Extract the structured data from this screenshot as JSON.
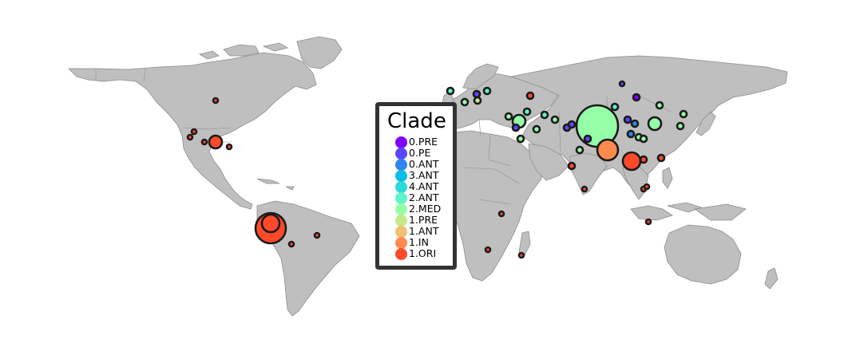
{
  "legend": {
    "title": "Clade",
    "items": [
      {
        "label": "0.PRE",
        "color": "#7f00ff"
      },
      {
        "label": "0.PE",
        "color": "#5a46ff"
      },
      {
        "label": "0.ANT",
        "color": "#2e86ee"
      },
      {
        "label": "3.ANT",
        "color": "#0bbde6"
      },
      {
        "label": "4.ANT",
        "color": "#2cdad8"
      },
      {
        "label": "2.ANT",
        "color": "#5ef5c7"
      },
      {
        "label": "2.MED",
        "color": "#94ffa6"
      },
      {
        "label": "1.PRE",
        "color": "#c3e98a"
      },
      {
        "label": "1.ANT",
        "color": "#f0c070"
      },
      {
        "label": "1.IN",
        "color": "#ff8a4c"
      },
      {
        "label": "1.ORI",
        "color": "#ff4a2a"
      }
    ]
  },
  "points": [
    {
      "region": "Canada",
      "clade": "1.ORI",
      "size": "small"
    },
    {
      "region": "California",
      "clade": "1.ORI",
      "size": "small"
    },
    {
      "region": "California",
      "clade": "1.ORI",
      "size": "small"
    },
    {
      "region": "Arizona",
      "clade": "1.ORI",
      "size": "small"
    },
    {
      "region": "New Mexico",
      "clade": "1.ORI",
      "size": "medium"
    },
    {
      "region": "Texas",
      "clade": "1.ORI",
      "size": "small"
    },
    {
      "region": "Peru/Ecuador",
      "clade": "1.ORI",
      "size": "large"
    },
    {
      "region": "Bolivia",
      "clade": "1.ORI",
      "size": "small"
    },
    {
      "region": "Brazil",
      "clade": "1.ORI",
      "size": "small"
    },
    {
      "region": "Uganda",
      "clade": "1.ORI",
      "size": "small"
    },
    {
      "region": "Zimbabwe",
      "clade": "1.ORI",
      "size": "small"
    },
    {
      "region": "Madagascar",
      "clade": "1.ORI",
      "size": "small"
    },
    {
      "region": "Caucasus",
      "clade": "2.MED",
      "size": "medium"
    },
    {
      "region": "Central Asia",
      "clade": "2.MED",
      "size": "large"
    },
    {
      "region": "China",
      "clade": "1.IN",
      "size": "large"
    },
    {
      "region": "China",
      "clade": "1.ORI",
      "size": "medium"
    },
    {
      "region": "Mongolia",
      "clade": "2.MED",
      "size": "medium"
    },
    {
      "region": "India",
      "clade": "1.ORI",
      "size": "small"
    },
    {
      "region": "Myanmar",
      "clade": "1.ORI",
      "size": "small"
    },
    {
      "region": "Vietnam",
      "clade": "1.ORI",
      "size": "small"
    },
    {
      "region": "Indonesia",
      "clade": "1.ORI",
      "size": "small"
    },
    {
      "region": "Siberia",
      "clade": "0.PE",
      "size": "small"
    }
  ]
}
